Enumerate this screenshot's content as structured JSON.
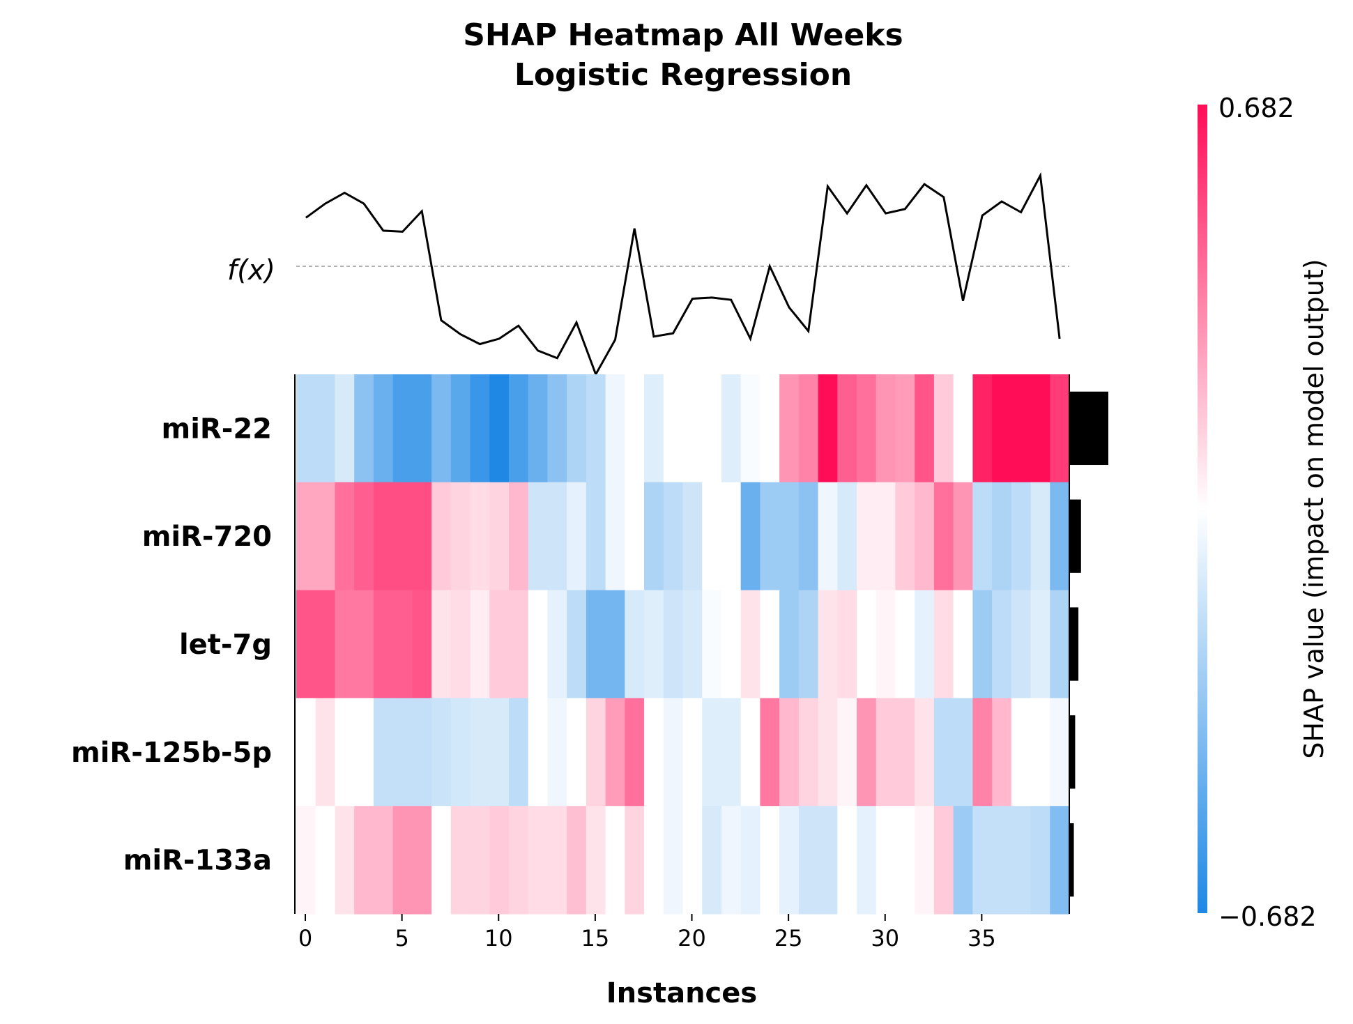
{
  "chart_data": {
    "type": "heatmap",
    "title": "SHAP Heatmap All Weeks",
    "subtitle": "Logistic Regression",
    "xlabel": "Instances",
    "fx_label": "f(x)",
    "colorbar_label": "SHAP value (impact on model output)",
    "colorbar_range": [
      -0.682,
      0.682
    ],
    "colorbar_tick_labels": [
      "0.682",
      "−0.682"
    ],
    "colormap": {
      "low": "#1E88E5",
      "mid": "#FFFFFF",
      "high": "#FF0D57"
    },
    "x_ticks": [
      0,
      5,
      10,
      15,
      20,
      25,
      30,
      35
    ],
    "x_tick_labels": [
      "0",
      "5",
      "10",
      "15",
      "20",
      "25",
      "30",
      "35"
    ],
    "features": [
      "miR-22",
      "miR-720",
      "let-7g",
      "miR-125b-5p",
      "miR-133a"
    ],
    "mean_abs_shap": [
      0.3,
      0.09,
      0.07,
      0.045,
      0.035
    ],
    "fx_baseline": 0,
    "fx": [
      0.45,
      0.58,
      0.68,
      0.58,
      0.33,
      0.32,
      0.51,
      -0.5,
      -0.63,
      -0.72,
      -0.67,
      -0.55,
      -0.78,
      -0.85,
      -0.52,
      -1.0,
      -0.68,
      0.35,
      -0.65,
      -0.62,
      -0.3,
      -0.29,
      -0.31,
      -0.67,
      0.0,
      -0.38,
      -0.6,
      0.74,
      0.49,
      0.75,
      0.49,
      0.53,
      0.76,
      0.64,
      -0.32,
      0.47,
      0.6,
      0.5,
      0.84,
      -0.67
    ],
    "values": [
      [
        -0.2,
        -0.2,
        -0.12,
        -0.35,
        -0.45,
        -0.55,
        -0.55,
        -0.4,
        -0.5,
        -0.6,
        -0.68,
        -0.55,
        -0.45,
        -0.35,
        -0.25,
        -0.2,
        -0.05,
        0.0,
        -0.1,
        0.0,
        0.0,
        0.0,
        -0.1,
        -0.02,
        0.0,
        0.3,
        0.35,
        0.68,
        0.45,
        0.4,
        0.3,
        0.28,
        0.48,
        0.15,
        0.0,
        0.62,
        0.68,
        0.68,
        0.68,
        0.55
      ],
      [
        0.25,
        0.25,
        0.4,
        0.45,
        0.5,
        0.5,
        0.5,
        0.15,
        0.12,
        0.1,
        0.12,
        0.2,
        -0.15,
        -0.15,
        -0.08,
        -0.2,
        -0.05,
        0.0,
        -0.25,
        -0.2,
        -0.15,
        0.0,
        0.0,
        -0.45,
        -0.3,
        -0.3,
        -0.35,
        -0.05,
        -0.12,
        0.05,
        0.05,
        0.15,
        0.2,
        0.4,
        0.3,
        -0.2,
        -0.25,
        -0.2,
        -0.12,
        -0.4
      ],
      [
        0.48,
        0.48,
        0.38,
        0.38,
        0.45,
        0.45,
        0.48,
        0.08,
        0.1,
        0.05,
        0.15,
        0.15,
        0.0,
        -0.08,
        -0.2,
        -0.42,
        -0.42,
        -0.12,
        -0.1,
        -0.15,
        -0.12,
        -0.02,
        0.0,
        0.08,
        0.0,
        -0.3,
        -0.25,
        0.08,
        0.1,
        0.0,
        0.03,
        0.0,
        -0.08,
        0.1,
        0.0,
        -0.3,
        -0.2,
        -0.15,
        -0.1,
        -0.25
      ],
      [
        0.0,
        0.08,
        0.0,
        0.0,
        -0.18,
        -0.18,
        -0.18,
        -0.16,
        -0.14,
        -0.12,
        -0.12,
        -0.2,
        0.0,
        -0.05,
        0.0,
        0.12,
        0.28,
        0.4,
        0.0,
        -0.05,
        0.0,
        -0.1,
        -0.1,
        0.0,
        0.38,
        0.2,
        0.12,
        0.08,
        0.03,
        0.3,
        0.15,
        0.15,
        0.08,
        -0.2,
        -0.2,
        0.35,
        0.2,
        0.0,
        0.0,
        -0.04
      ],
      [
        0.03,
        0.0,
        0.08,
        0.2,
        0.2,
        0.3,
        0.3,
        0.0,
        0.12,
        0.12,
        0.15,
        0.12,
        0.1,
        0.1,
        0.18,
        0.08,
        0.0,
        0.12,
        0.0,
        -0.05,
        0.0,
        -0.12,
        -0.05,
        -0.08,
        0.0,
        -0.08,
        -0.15,
        -0.15,
        0.0,
        -0.08,
        0.0,
        0.0,
        0.03,
        0.15,
        -0.3,
        -0.18,
        -0.18,
        -0.18,
        -0.2,
        -0.38
      ]
    ]
  }
}
